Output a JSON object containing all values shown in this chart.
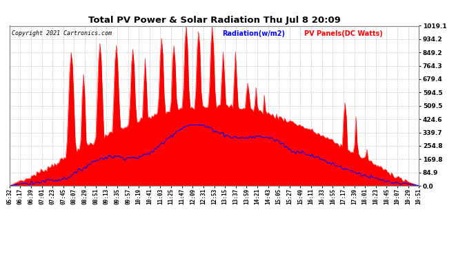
{
  "title": "Total PV Power & Solar Radiation Thu Jul 8 20:09",
  "copyright": "Copyright 2021 Cartronics.com",
  "legend_radiation": "Radiation(w/m2)",
  "legend_pv": "PV Panels(DC Watts)",
  "yticks": [
    0.0,
    84.9,
    169.8,
    254.8,
    339.7,
    424.6,
    509.5,
    594.5,
    679.4,
    764.3,
    849.2,
    934.2,
    1019.1
  ],
  "ymax": 1019.1,
  "ymin": 0.0,
  "bg_color": "#ffffff",
  "grid_color": "#bbbbbb",
  "fill_color": "#ff0000",
  "line_color": "#0000ff",
  "title_color": "#000000",
  "copyright_color": "#000000",
  "xtick_labels": [
    "05:32",
    "06:17",
    "06:39",
    "07:01",
    "07:23",
    "07:45",
    "08:07",
    "08:29",
    "08:51",
    "09:13",
    "09:35",
    "09:57",
    "10:19",
    "10:41",
    "11:03",
    "11:25",
    "11:47",
    "12:09",
    "12:31",
    "12:53",
    "13:15",
    "13:37",
    "13:59",
    "14:21",
    "14:43",
    "15:05",
    "15:27",
    "15:49",
    "16:11",
    "16:33",
    "16:55",
    "17:17",
    "17:39",
    "18:01",
    "18:23",
    "18:45",
    "19:07",
    "19:29",
    "19:51"
  ],
  "num_points": 300,
  "figwidth": 6.9,
  "figheight": 3.75,
  "dpi": 100
}
